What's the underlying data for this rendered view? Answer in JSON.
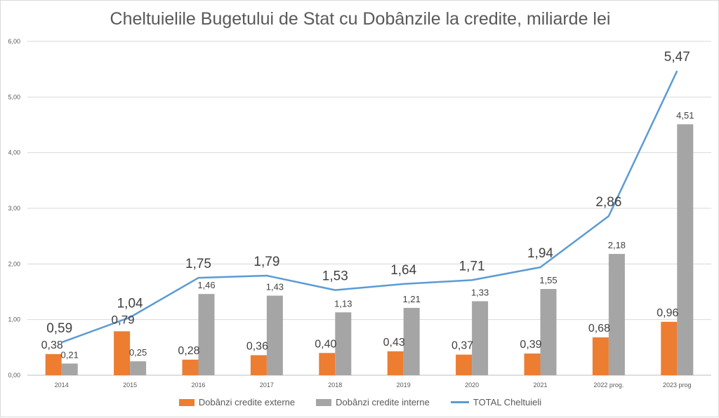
{
  "chart_data": {
    "type": "bar",
    "title": "Cheltuielile Bugetului de Stat cu Dobânzile la credite, miliarde lei",
    "categories": [
      "2014",
      "2015",
      "2016",
      "2017",
      "2018",
      "2019",
      "2020",
      "2021",
      "2022 prog.",
      "2023 prog"
    ],
    "series": [
      {
        "name": "Dobânzi credite externe",
        "kind": "bar",
        "color": "#ED7D31",
        "values": [
          0.38,
          0.79,
          0.28,
          0.36,
          0.4,
          0.43,
          0.37,
          0.39,
          0.68,
          0.96
        ],
        "labels": [
          "0,38",
          "",
          "0,28",
          "0,36",
          "0,40",
          "0,43",
          "0,37",
          "0,39",
          "0,68",
          "0,96"
        ]
      },
      {
        "name": "Dobânzi credite interne",
        "kind": "bar",
        "color": "#A5A5A5",
        "values": [
          0.21,
          0.25,
          1.46,
          1.43,
          1.13,
          1.21,
          1.33,
          1.55,
          2.18,
          4.51
        ],
        "labels": [
          "0,21",
          "0,25",
          "1,46",
          "1,43",
          "1,13",
          "1,21",
          "1,33",
          "1,55",
          "2,18",
          "4,51"
        ]
      },
      {
        "name": "TOTAL Cheltuieli",
        "kind": "line",
        "color": "#5B9BD5",
        "values": [
          0.59,
          1.04,
          1.75,
          1.79,
          1.53,
          1.64,
          1.71,
          1.94,
          2.86,
          5.47
        ],
        "labels": [
          "0,59",
          "1,04",
          "1,75",
          "1,79",
          "1,53",
          "1,64",
          "1,71",
          "1,94",
          "2,86",
          "5,47"
        ]
      }
    ],
    "extra_label": "0,79",
    "ylim": [
      0,
      6
    ],
    "yticks": [
      "0,00",
      "1,00",
      "2,00",
      "3,00",
      "4,00",
      "5,00",
      "6,00"
    ],
    "xlabel": "",
    "ylabel": "",
    "grid": true,
    "legend_position": "bottom"
  }
}
